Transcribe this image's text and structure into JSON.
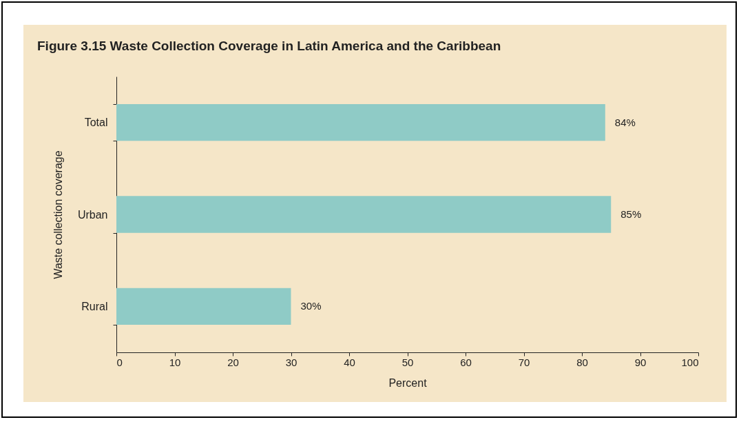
{
  "chart_data": {
    "type": "bar",
    "orientation": "horizontal",
    "title": "Figure 3.15  Waste Collection Coverage in Latin America and the Caribbean",
    "xlabel": "Percent",
    "ylabel": "Waste collection coverage",
    "categories": [
      "Total",
      "Urban",
      "Rural"
    ],
    "values": [
      84,
      85,
      30
    ],
    "value_labels": [
      "84%",
      "85%",
      "30%"
    ],
    "color": "#8fcbc6",
    "xlim": [
      0,
      100
    ],
    "xticks": [
      0,
      10,
      20,
      30,
      40,
      50,
      60,
      70,
      80,
      90,
      100
    ],
    "grid": false
  }
}
